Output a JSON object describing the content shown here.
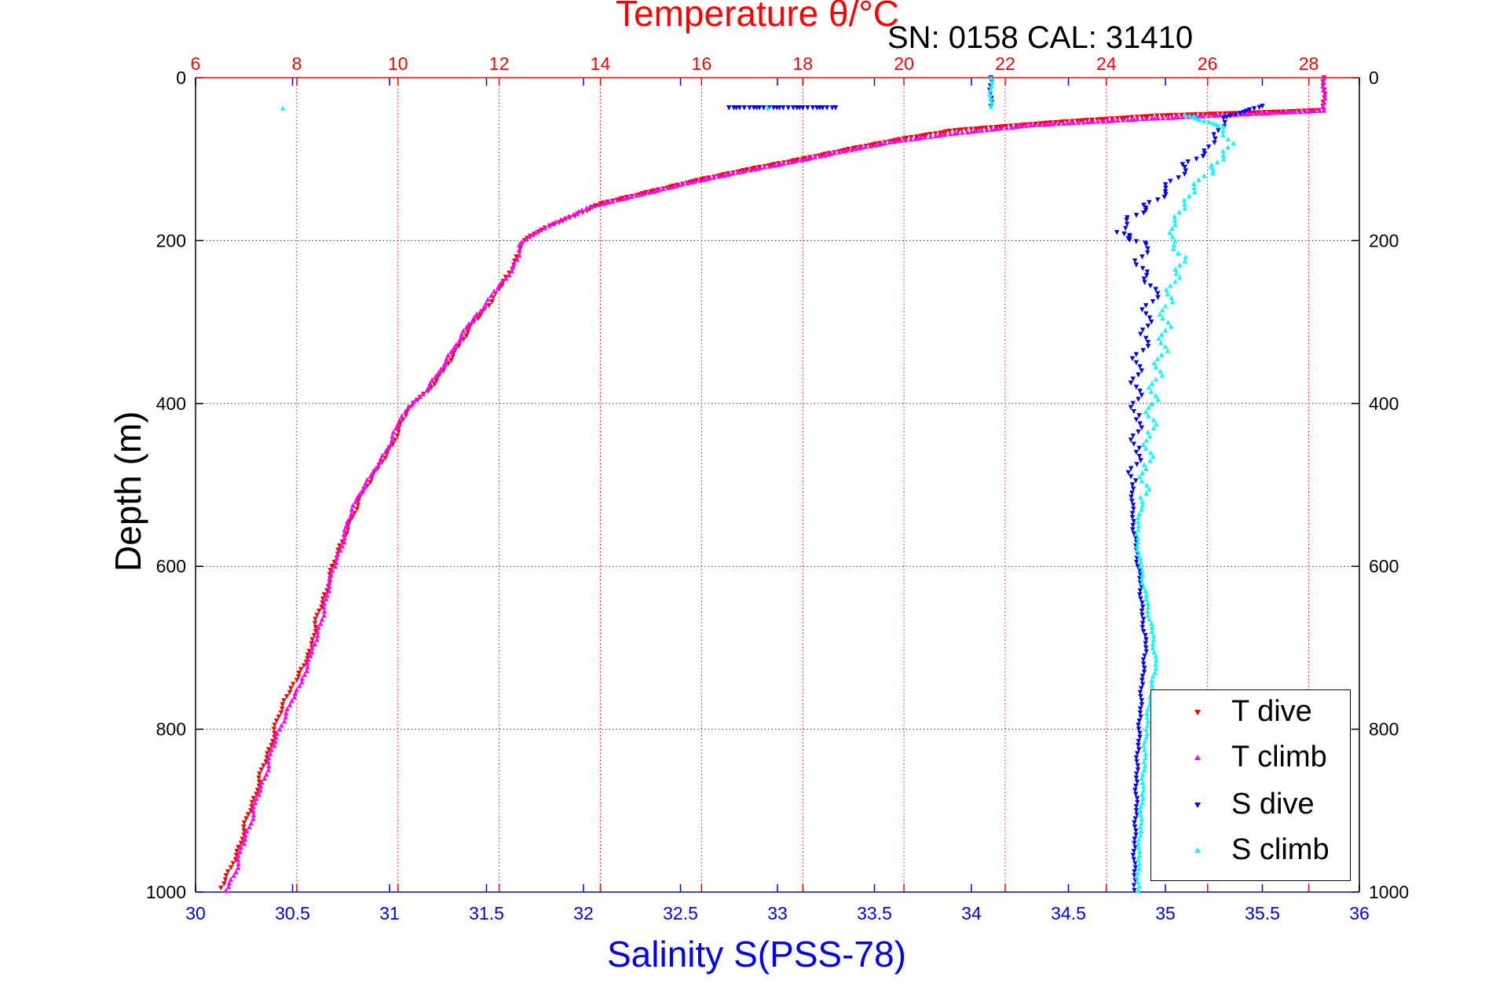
{
  "chart_data": {
    "type": "scatter",
    "title": "Temperature θ/°C",
    "subtitle": "SN: 0158  CAL: 31410",
    "xlabel": "Salinity S(PSS-78)",
    "ylabel": "Depth (m)",
    "top_axis": {
      "lim": [
        6,
        29
      ],
      "ticks": [
        6,
        8,
        10,
        12,
        14,
        16,
        18,
        20,
        22,
        24,
        26,
        28
      ],
      "color": "#ff0000"
    },
    "bottom_axis": {
      "lim": [
        30,
        36
      ],
      "ticks": [
        30,
        30.5,
        31,
        31.5,
        32,
        32.5,
        33,
        33.5,
        34,
        34.5,
        35,
        35.5,
        36
      ],
      "color": "#0000ff"
    },
    "ylim": [
      0,
      1000
    ],
    "yticks": [
      0,
      200,
      400,
      600,
      800,
      1000
    ],
    "y_reversed": true,
    "grid": true,
    "legend_position": "bottom-right",
    "series": [
      {
        "name": "T dive",
        "axis": "top",
        "color": "#ff0000",
        "marker": "triangle-down",
        "points": [
          [
            28.3,
            0
          ],
          [
            28.3,
            40
          ],
          [
            27.5,
            42
          ],
          [
            25,
            47
          ],
          [
            23,
            55
          ],
          [
            21,
            65
          ],
          [
            20,
            75
          ],
          [
            19,
            87
          ],
          [
            18,
            100
          ],
          [
            17,
            112
          ],
          [
            16,
            125
          ],
          [
            15,
            140
          ],
          [
            14,
            155
          ],
          [
            13.5,
            170
          ],
          [
            13,
            182
          ],
          [
            12.7,
            192
          ],
          [
            12.5,
            200
          ],
          [
            12.4,
            215
          ],
          [
            12.2,
            240
          ],
          [
            12,
            260
          ],
          [
            11.8,
            280
          ],
          [
            11.5,
            300
          ],
          [
            11.2,
            330
          ],
          [
            10.9,
            360
          ],
          [
            10.6,
            385
          ],
          [
            10.3,
            400
          ],
          [
            10.1,
            420
          ],
          [
            9.9,
            450
          ],
          [
            9.6,
            480
          ],
          [
            9.3,
            510
          ],
          [
            9.1,
            540
          ],
          [
            8.9,
            570
          ],
          [
            8.7,
            600
          ],
          [
            8.6,
            630
          ],
          [
            8.4,
            660
          ],
          [
            8.3,
            700
          ],
          [
            8.0,
            740
          ],
          [
            7.8,
            760
          ],
          [
            7.6,
            790
          ],
          [
            7.5,
            820
          ],
          [
            7.3,
            850
          ],
          [
            7.2,
            880
          ],
          [
            7.0,
            910
          ],
          [
            6.9,
            940
          ],
          [
            6.7,
            970
          ],
          [
            6.5,
            995
          ]
        ]
      },
      {
        "name": "T climb",
        "axis": "top",
        "color": "#ff00ff",
        "marker": "triangle-up",
        "points": [
          [
            28.3,
            0
          ],
          [
            28.3,
            40
          ],
          [
            26.5,
            45
          ],
          [
            24.8,
            50
          ],
          [
            22.5,
            58
          ],
          [
            21,
            68
          ],
          [
            19.8,
            78
          ],
          [
            18.8,
            90
          ],
          [
            17.8,
            103
          ],
          [
            16.8,
            115
          ],
          [
            15.8,
            128
          ],
          [
            14.8,
            143
          ],
          [
            13.8,
            158
          ],
          [
            13.3,
            172
          ],
          [
            12.9,
            184
          ],
          [
            12.6,
            195
          ],
          [
            12.4,
            205
          ],
          [
            12.4,
            218
          ],
          [
            12.2,
            242
          ],
          [
            11.9,
            262
          ],
          [
            11.7,
            282
          ],
          [
            11.4,
            302
          ],
          [
            11.1,
            332
          ],
          [
            10.8,
            362
          ],
          [
            10.5,
            388
          ],
          [
            10.2,
            405
          ],
          [
            10.0,
            425
          ],
          [
            9.8,
            455
          ],
          [
            9.5,
            485
          ],
          [
            9.2,
            515
          ],
          [
            9.0,
            545
          ],
          [
            8.9,
            575
          ],
          [
            8.7,
            605
          ],
          [
            8.6,
            635
          ],
          [
            8.5,
            665
          ],
          [
            8.3,
            705
          ],
          [
            8.1,
            742
          ],
          [
            7.9,
            765
          ],
          [
            7.7,
            795
          ],
          [
            7.5,
            825
          ],
          [
            7.4,
            855
          ],
          [
            7.2,
            885
          ],
          [
            7.1,
            915
          ],
          [
            6.9,
            945
          ],
          [
            6.8,
            975
          ],
          [
            6.6,
            998
          ]
        ]
      },
      {
        "name": "S dive",
        "axis": "bottom",
        "color": "#0000ff",
        "marker": "triangle-down",
        "points": [
          [
            34.1,
            0
          ],
          [
            34.1,
            35
          ],
          [
            32.75,
            37
          ],
          [
            33.3,
            37
          ],
          [
            35.5,
            35
          ],
          [
            35.3,
            50
          ],
          [
            35.25,
            70
          ],
          [
            35.2,
            90
          ],
          [
            35.1,
            110
          ],
          [
            35.0,
            140
          ],
          [
            34.9,
            160
          ],
          [
            34.8,
            175
          ],
          [
            34.75,
            190
          ],
          [
            34.9,
            205
          ],
          [
            34.85,
            230
          ],
          [
            34.95,
            260
          ],
          [
            34.9,
            290
          ],
          [
            34.9,
            320
          ],
          [
            34.85,
            350
          ],
          [
            34.85,
            380
          ],
          [
            34.85,
            420
          ],
          [
            34.85,
            460
          ],
          [
            34.83,
            500
          ],
          [
            34.83,
            540
          ],
          [
            34.85,
            580
          ],
          [
            34.87,
            620
          ],
          [
            34.88,
            660
          ],
          [
            34.9,
            700
          ],
          [
            34.88,
            740
          ],
          [
            34.87,
            780
          ],
          [
            34.86,
            820
          ],
          [
            34.85,
            860
          ],
          [
            34.85,
            900
          ],
          [
            34.84,
            940
          ],
          [
            34.84,
            980
          ],
          [
            34.84,
            998
          ]
        ]
      },
      {
        "name": "S climb",
        "axis": "bottom",
        "color": "#00ffff",
        "marker": "triangle-up",
        "points": [
          [
            34.1,
            0
          ],
          [
            34.1,
            35
          ],
          [
            30.45,
            37
          ],
          [
            32.95,
            37
          ],
          [
            35.1,
            45
          ],
          [
            35.3,
            60
          ],
          [
            35.35,
            80
          ],
          [
            35.3,
            100
          ],
          [
            35.2,
            120
          ],
          [
            35.15,
            140
          ],
          [
            35.1,
            160
          ],
          [
            35.05,
            180
          ],
          [
            35.05,
            200
          ],
          [
            35.1,
            225
          ],
          [
            35.05,
            250
          ],
          [
            35.0,
            280
          ],
          [
            35.0,
            310
          ],
          [
            34.98,
            340
          ],
          [
            34.95,
            370
          ],
          [
            34.93,
            400
          ],
          [
            34.92,
            440
          ],
          [
            34.9,
            480
          ],
          [
            34.88,
            520
          ],
          [
            34.85,
            560
          ],
          [
            34.87,
            600
          ],
          [
            34.9,
            640
          ],
          [
            34.93,
            680
          ],
          [
            34.95,
            720
          ],
          [
            34.92,
            760
          ],
          [
            34.9,
            800
          ],
          [
            34.89,
            840
          ],
          [
            34.88,
            880
          ],
          [
            34.87,
            920
          ],
          [
            34.86,
            960
          ],
          [
            34.86,
            998
          ]
        ]
      }
    ]
  }
}
